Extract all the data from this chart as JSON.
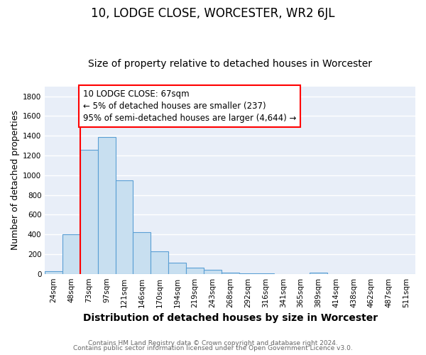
{
  "title1": "10, LODGE CLOSE, WORCESTER, WR2 6JL",
  "title2": "Size of property relative to detached houses in Worcester",
  "xlabel": "Distribution of detached houses by size in Worcester",
  "ylabel": "Number of detached properties",
  "bin_labels": [
    "24sqm",
    "48sqm",
    "73sqm",
    "97sqm",
    "121sqm",
    "146sqm",
    "170sqm",
    "194sqm",
    "219sqm",
    "243sqm",
    "268sqm",
    "292sqm",
    "316sqm",
    "341sqm",
    "365sqm",
    "389sqm",
    "414sqm",
    "438sqm",
    "462sqm",
    "487sqm",
    "511sqm"
  ],
  "bar_values": [
    25,
    400,
    1260,
    1390,
    950,
    425,
    230,
    110,
    65,
    40,
    15,
    5,
    5,
    0,
    0,
    15,
    0,
    0,
    0,
    0,
    0
  ],
  "bar_color": "#c8dff0",
  "bar_edge_color": "#5a9fd4",
  "vline_color": "red",
  "vline_x_index": 2,
  "annotation_text": "10 LODGE CLOSE: 67sqm\n← 5% of detached houses are smaller (237)\n95% of semi-detached houses are larger (4,644) →",
  "annotation_box_color": "white",
  "annotation_box_edge": "red",
  "ylim": [
    0,
    1900
  ],
  "yticks": [
    0,
    200,
    400,
    600,
    800,
    1000,
    1200,
    1400,
    1600,
    1800
  ],
  "footer1": "Contains HM Land Registry data © Crown copyright and database right 2024.",
  "footer2": "Contains public sector information licensed under the Open Government Licence v3.0.",
  "fig_bg_color": "#ffffff",
  "plot_bg_color": "#e8eef8",
  "grid_color": "#ffffff",
  "title1_fontsize": 12,
  "title2_fontsize": 10,
  "xlabel_fontsize": 10,
  "ylabel_fontsize": 9,
  "tick_fontsize": 7.5,
  "annotation_fontsize": 8.5,
  "footer_fontsize": 6.5
}
